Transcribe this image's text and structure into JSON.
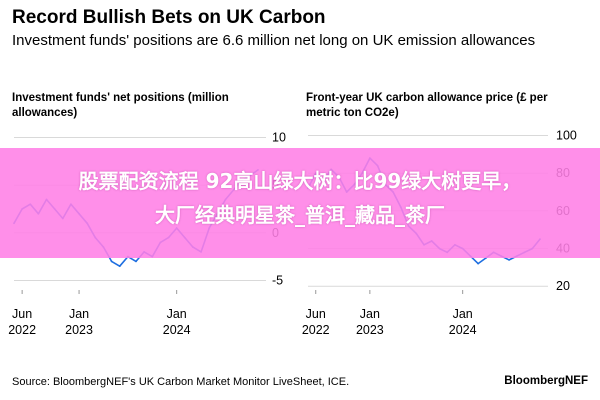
{
  "header": {
    "title": "Record Bullish Bets on UK Carbon",
    "subtitle": "Investment funds' positions are 6.6 million net long on UK emission allowances"
  },
  "footer": {
    "source": "Source: BloombergNEF's UK Carbon Market Monitor LiveSheet, ICE.",
    "brand": "BloombergNEF"
  },
  "overlay": {
    "line1": "股票配资流程 92高山绿大树：比99绿大树更早，",
    "line2": "大厂经典明星茶_普洱_藏品_茶厂"
  },
  "colors": {
    "series": "#1f6fe0",
    "overlay": "#ff80e6"
  },
  "chart_data": [
    {
      "type": "line",
      "title": "Investment funds' net positions (million allowances)",
      "y_ticks": [
        10,
        5,
        0,
        -5
      ],
      "ylim": [
        -6,
        11
      ],
      "x_ticks": [
        {
          "line1": "Jun",
          "line2": "2022",
          "x": "2022-06"
        },
        {
          "line1": "Jan",
          "line2": "2023",
          "x": "2023-01"
        },
        {
          "line1": "Jan",
          "line2": "2024",
          "x": "2024-01"
        }
      ],
      "xlim": [
        "2022-05",
        "2024-11"
      ],
      "series": [
        {
          "x": [
            "2022-05",
            "2022-06",
            "2022-07",
            "2022-08",
            "2022-09",
            "2022-10",
            "2022-11",
            "2022-12",
            "2023-01",
            "2023-02",
            "2023-03",
            "2023-04",
            "2023-05",
            "2023-06",
            "2023-07",
            "2023-08",
            "2023-09",
            "2023-10",
            "2023-11",
            "2023-12",
            "2024-01",
            "2024-02",
            "2024-03",
            "2024-04",
            "2024-05",
            "2024-06",
            "2024-07",
            "2024-08",
            "2024-09",
            "2024-10",
            "2024-11"
          ],
          "values": [
            1.0,
            2.5,
            3.0,
            2.0,
            3.5,
            2.5,
            1.5,
            3.0,
            2.0,
            1.0,
            -0.5,
            -1.5,
            -3.0,
            -3.5,
            -2.5,
            -3.0,
            -2.0,
            -2.5,
            -1.0,
            -0.5,
            0.5,
            -0.5,
            -1.5,
            -2.0,
            0.5,
            2.0,
            3.5,
            4.5,
            5.5,
            6.0,
            6.6
          ]
        }
      ]
    },
    {
      "type": "line",
      "title": "Front-year UK carbon allowance price (£ per metric ton CO2e)",
      "y_ticks": [
        100,
        80,
        60,
        40,
        20
      ],
      "ylim": [
        18,
        104
      ],
      "x_ticks": [
        {
          "line1": "Jun",
          "line2": "2022",
          "x": "2022-06"
        },
        {
          "line1": "Jan",
          "line2": "2023",
          "x": "2023-01"
        },
        {
          "line1": "Jan",
          "line2": "2024",
          "x": "2024-01"
        }
      ],
      "xlim": [
        "2022-05",
        "2024-11"
      ],
      "series": [
        {
          "x": [
            "2022-05",
            "2022-06",
            "2022-07",
            "2022-08",
            "2022-09",
            "2022-10",
            "2022-11",
            "2022-12",
            "2023-01",
            "2023-02",
            "2023-03",
            "2023-04",
            "2023-05",
            "2023-06",
            "2023-07",
            "2023-08",
            "2023-09",
            "2023-10",
            "2023-11",
            "2023-12",
            "2024-01",
            "2024-02",
            "2024-03",
            "2024-04",
            "2024-05",
            "2024-06",
            "2024-07",
            "2024-08",
            "2024-09",
            "2024-10",
            "2024-11"
          ],
          "values": [
            72,
            80,
            76,
            82,
            78,
            70,
            74,
            80,
            88,
            84,
            74,
            70,
            62,
            52,
            48,
            42,
            44,
            40,
            38,
            42,
            40,
            36,
            32,
            35,
            38,
            36,
            34,
            36,
            38,
            40,
            45
          ]
        }
      ]
    }
  ]
}
